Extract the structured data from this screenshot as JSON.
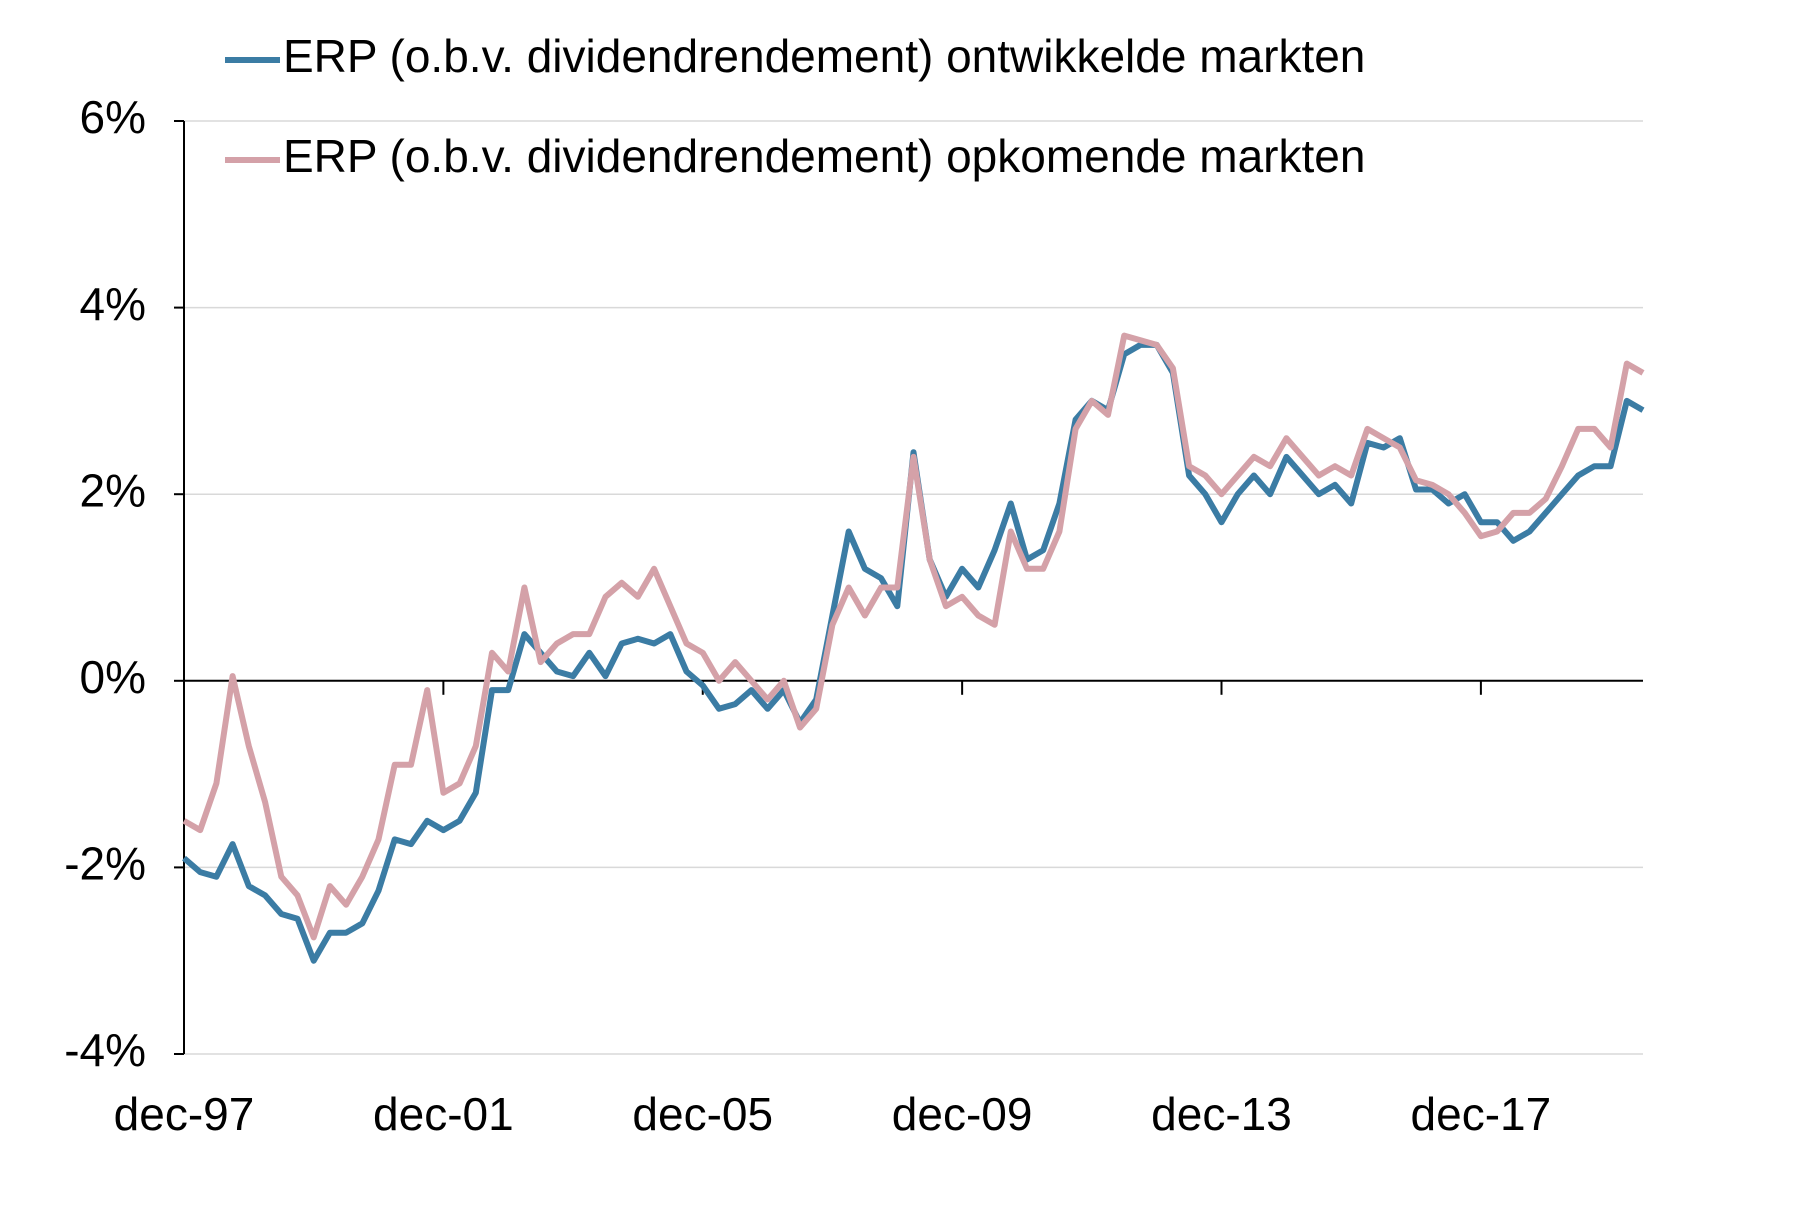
{
  "chart_data": {
    "type": "line",
    "categories": [
      "dec-97",
      null,
      null,
      null,
      null,
      null,
      null,
      null,
      null,
      null,
      null,
      null,
      null,
      null,
      null,
      null,
      "dec-01",
      null,
      null,
      null,
      null,
      null,
      null,
      null,
      null,
      null,
      null,
      null,
      null,
      null,
      null,
      null,
      "dec-05",
      null,
      null,
      null,
      null,
      null,
      null,
      null,
      null,
      null,
      null,
      null,
      null,
      null,
      null,
      null,
      "dec-09",
      null,
      null,
      null,
      null,
      null,
      null,
      null,
      null,
      null,
      null,
      null,
      null,
      null,
      null,
      null,
      "dec-13",
      null,
      null,
      null,
      null,
      null,
      null,
      null,
      null,
      null,
      null,
      null,
      null,
      null,
      null,
      null,
      "dec-17",
      null,
      null,
      null,
      null,
      null,
      null,
      null,
      null,
      null,
      null
    ],
    "series": [
      {
        "name": "ERP (o.b.v. dividendrendement) ontwikkelde markten",
        "color": "#3b7ca4",
        "values": [
          -1.9,
          -2.05,
          -2.1,
          -1.75,
          -2.2,
          -2.3,
          -2.5,
          -2.55,
          -3.0,
          -2.7,
          -2.7,
          -2.6,
          -2.25,
          -1.7,
          -1.75,
          -1.5,
          -1.6,
          -1.5,
          -1.2,
          -0.1,
          -0.1,
          0.5,
          0.3,
          0.1,
          0.05,
          0.3,
          0.05,
          0.4,
          0.45,
          0.4,
          0.5,
          0.1,
          -0.05,
          -0.3,
          -0.25,
          -0.1,
          -0.3,
          -0.1,
          -0.45,
          -0.2,
          0.7,
          1.6,
          1.2,
          1.1,
          0.8,
          2.45,
          1.3,
          0.9,
          1.2,
          1.0,
          1.4,
          1.9,
          1.3,
          1.4,
          1.9,
          2.8,
          3.0,
          2.9,
          3.5,
          3.6,
          3.6,
          3.3,
          2.2,
          2.0,
          1.7,
          2.0,
          2.2,
          2.0,
          2.4,
          2.2,
          2.0,
          2.1,
          1.9,
          2.55,
          2.5,
          2.6,
          2.05,
          2.05,
          1.9,
          2.0,
          1.7,
          1.7,
          1.5,
          1.6,
          1.8,
          2.0,
          2.2,
          2.3,
          2.3,
          3.0,
          2.9
        ]
      },
      {
        "name": "ERP (o.b.v. dividendrendement) opkomende markten",
        "color": "#d4a1a8",
        "values": [
          -1.5,
          -1.6,
          -1.1,
          0.05,
          -0.7,
          -1.3,
          -2.1,
          -2.3,
          -2.75,
          -2.2,
          -2.4,
          -2.1,
          -1.7,
          -0.9,
          -0.9,
          -0.1,
          -1.2,
          -1.1,
          -0.7,
          0.3,
          0.1,
          1.0,
          0.2,
          0.4,
          0.5,
          0.5,
          0.9,
          1.05,
          0.9,
          1.2,
          0.8,
          0.4,
          0.3,
          0.0,
          0.2,
          0.0,
          -0.2,
          0.0,
          -0.5,
          -0.3,
          0.6,
          1.0,
          0.7,
          1.0,
          1.0,
          2.4,
          1.3,
          0.8,
          0.9,
          0.7,
          0.6,
          1.6,
          1.2,
          1.2,
          1.6,
          2.7,
          3.0,
          2.85,
          3.7,
          3.65,
          3.6,
          3.35,
          2.3,
          2.2,
          2.0,
          2.2,
          2.4,
          2.3,
          2.6,
          2.4,
          2.2,
          2.3,
          2.2,
          2.7,
          2.6,
          2.5,
          2.15,
          2.1,
          2.0,
          1.8,
          1.55,
          1.6,
          1.8,
          1.8,
          1.95,
          2.3,
          2.7,
          2.7,
          2.5,
          3.4,
          3.3
        ]
      }
    ],
    "ylim": [
      -4,
      6
    ],
    "yticks": [
      {
        "value": -4,
        "label": "-4%"
      },
      {
        "value": -2,
        "label": "-2%"
      },
      {
        "value": 0,
        "label": "0%"
      },
      {
        "value": 2,
        "label": "2%"
      },
      {
        "value": 4,
        "label": "4%"
      },
      {
        "value": 6,
        "label": "6%"
      }
    ],
    "grid": true,
    "legend": "top"
  }
}
